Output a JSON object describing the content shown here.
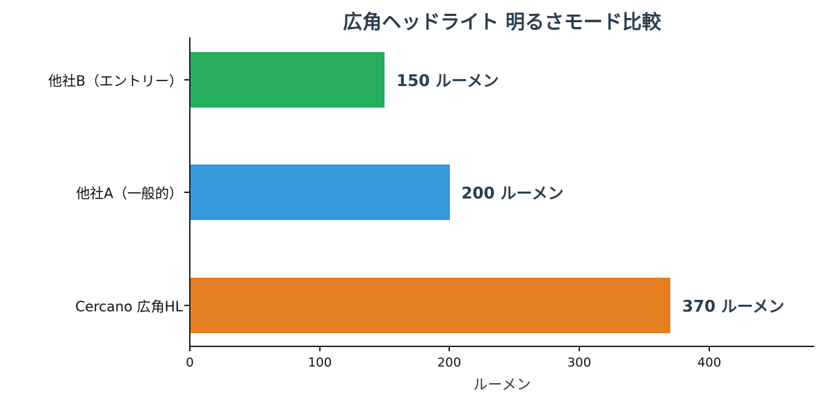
{
  "chart_data": {
    "type": "bar",
    "orientation": "horizontal",
    "title": "広角ヘッドライト 明るさモード比較",
    "xlabel": "ルーメン",
    "ylabel": "",
    "categories": [
      "他社B（エントリー）",
      "他社A（一般的）",
      "Cercano 広角HL"
    ],
    "values": [
      150,
      200,
      370
    ],
    "value_labels": [
      "150 ルーメン",
      "200 ルーメン",
      "370 ルーメン"
    ],
    "colors": [
      "#27ae60",
      "#3498db",
      "#e67e22"
    ],
    "xlim": [
      0,
      480
    ],
    "xticks": [
      "0",
      "100",
      "200",
      "300",
      "400"
    ],
    "grid": false,
    "legend": null
  }
}
